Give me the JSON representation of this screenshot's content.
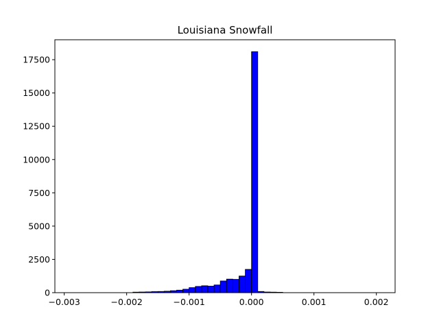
{
  "chart_data": {
    "type": "bar",
    "title": "Louisiana Snowfall",
    "xlabel": "",
    "ylabel": "",
    "xlim": [
      -0.00315,
      0.0023
    ],
    "ylim": [
      0,
      18997
    ],
    "grid": false,
    "bar_fill": "#0000ff",
    "bar_edge": "#000000",
    "bin_width": 0.0001,
    "bins": [
      {
        "x0": -0.0019,
        "x1": -0.0018,
        "count": 40
      },
      {
        "x0": -0.0018,
        "x1": -0.0017,
        "count": 50
      },
      {
        "x0": -0.0017,
        "x1": -0.0016,
        "count": 60
      },
      {
        "x0": -0.0016,
        "x1": -0.0015,
        "count": 80
      },
      {
        "x0": -0.0015,
        "x1": -0.0014,
        "count": 90
      },
      {
        "x0": -0.0014,
        "x1": -0.0013,
        "count": 110
      },
      {
        "x0": -0.0013,
        "x1": -0.0012,
        "count": 150
      },
      {
        "x0": -0.0012,
        "x1": -0.0011,
        "count": 190
      },
      {
        "x0": -0.0011,
        "x1": -0.001,
        "count": 260
      },
      {
        "x0": -0.001,
        "x1": -0.0009,
        "count": 380
      },
      {
        "x0": -0.0009,
        "x1": -0.0008,
        "count": 470
      },
      {
        "x0": -0.0008,
        "x1": -0.0007,
        "count": 520
      },
      {
        "x0": -0.0007,
        "x1": -0.0006,
        "count": 490
      },
      {
        "x0": -0.0006,
        "x1": -0.0005,
        "count": 580
      },
      {
        "x0": -0.0005,
        "x1": -0.0004,
        "count": 880
      },
      {
        "x0": -0.0004,
        "x1": -0.0003,
        "count": 1020
      },
      {
        "x0": -0.0003,
        "x1": -0.0002,
        "count": 1000
      },
      {
        "x0": -0.0002,
        "x1": -0.0001,
        "count": 1250
      },
      {
        "x0": -0.0001,
        "x1": 0.0,
        "count": 1750
      },
      {
        "x0": 0.0,
        "x1": 0.0001,
        "count": 18100
      },
      {
        "x0": 0.0001,
        "x1": 0.0002,
        "count": 90
      },
      {
        "x0": 0.0002,
        "x1": 0.0003,
        "count": 50
      },
      {
        "x0": 0.0003,
        "x1": 0.0004,
        "count": 40
      },
      {
        "x0": 0.0004,
        "x1": 0.0005,
        "count": 30
      }
    ],
    "x_ticks": [
      {
        "value": -0.003,
        "label": "−0.003"
      },
      {
        "value": -0.002,
        "label": "−0.002"
      },
      {
        "value": -0.001,
        "label": "−0.001"
      },
      {
        "value": 0.0,
        "label": "0.000"
      },
      {
        "value": 0.001,
        "label": "0.001"
      },
      {
        "value": 0.002,
        "label": "0.002"
      }
    ],
    "y_ticks": [
      {
        "value": 0,
        "label": "0"
      },
      {
        "value": 2500,
        "label": "2500"
      },
      {
        "value": 5000,
        "label": "5000"
      },
      {
        "value": 7500,
        "label": "7500"
      },
      {
        "value": 10000,
        "label": "10000"
      },
      {
        "value": 12500,
        "label": "12500"
      },
      {
        "value": 15000,
        "label": "15000"
      },
      {
        "value": 17500,
        "label": "17500"
      }
    ]
  }
}
